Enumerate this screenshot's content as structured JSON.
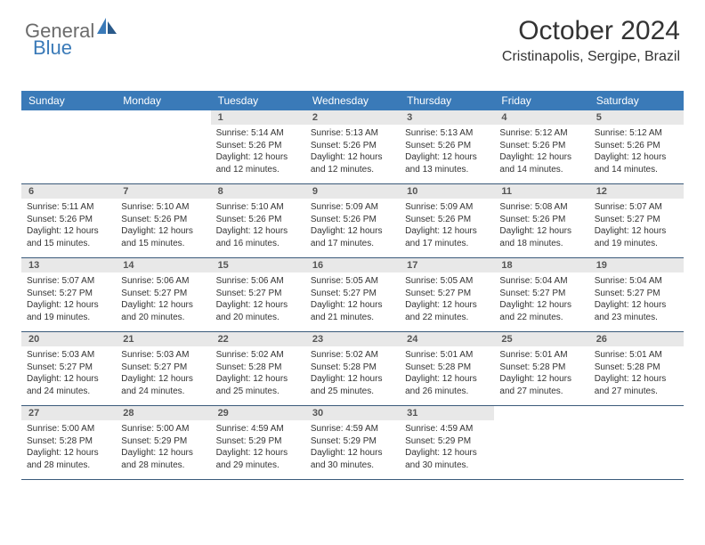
{
  "logo": {
    "word1": "General",
    "word2": "Blue"
  },
  "title": "October 2024",
  "location": "Cristinapolis, Sergipe, Brazil",
  "colors": {
    "header_bg": "#3a7ab8",
    "header_text": "#ffffff",
    "daynum_bg": "#e8e8e8",
    "daynum_text": "#555555",
    "body_text": "#333333",
    "week_border": "#3a5a7a",
    "logo_gray": "#6b6b6b",
    "logo_blue": "#3a7ab8",
    "background": "#ffffff"
  },
  "typography": {
    "title_fontsize": 30,
    "location_fontsize": 16,
    "header_fontsize": 12,
    "daynum_fontsize": 11,
    "content_fontsize": 10
  },
  "layout": {
    "columns": 7,
    "rows": 5
  },
  "day_headers": [
    "Sunday",
    "Monday",
    "Tuesday",
    "Wednesday",
    "Thursday",
    "Friday",
    "Saturday"
  ],
  "weeks": [
    [
      null,
      null,
      {
        "n": "1",
        "sunrise": "5:14 AM",
        "sunset": "5:26 PM",
        "daylight": "12 hours and 12 minutes."
      },
      {
        "n": "2",
        "sunrise": "5:13 AM",
        "sunset": "5:26 PM",
        "daylight": "12 hours and 12 minutes."
      },
      {
        "n": "3",
        "sunrise": "5:13 AM",
        "sunset": "5:26 PM",
        "daylight": "12 hours and 13 minutes."
      },
      {
        "n": "4",
        "sunrise": "5:12 AM",
        "sunset": "5:26 PM",
        "daylight": "12 hours and 14 minutes."
      },
      {
        "n": "5",
        "sunrise": "5:12 AM",
        "sunset": "5:26 PM",
        "daylight": "12 hours and 14 minutes."
      }
    ],
    [
      {
        "n": "6",
        "sunrise": "5:11 AM",
        "sunset": "5:26 PM",
        "daylight": "12 hours and 15 minutes."
      },
      {
        "n": "7",
        "sunrise": "5:10 AM",
        "sunset": "5:26 PM",
        "daylight": "12 hours and 15 minutes."
      },
      {
        "n": "8",
        "sunrise": "5:10 AM",
        "sunset": "5:26 PM",
        "daylight": "12 hours and 16 minutes."
      },
      {
        "n": "9",
        "sunrise": "5:09 AM",
        "sunset": "5:26 PM",
        "daylight": "12 hours and 17 minutes."
      },
      {
        "n": "10",
        "sunrise": "5:09 AM",
        "sunset": "5:26 PM",
        "daylight": "12 hours and 17 minutes."
      },
      {
        "n": "11",
        "sunrise": "5:08 AM",
        "sunset": "5:26 PM",
        "daylight": "12 hours and 18 minutes."
      },
      {
        "n": "12",
        "sunrise": "5:07 AM",
        "sunset": "5:27 PM",
        "daylight": "12 hours and 19 minutes."
      }
    ],
    [
      {
        "n": "13",
        "sunrise": "5:07 AM",
        "sunset": "5:27 PM",
        "daylight": "12 hours and 19 minutes."
      },
      {
        "n": "14",
        "sunrise": "5:06 AM",
        "sunset": "5:27 PM",
        "daylight": "12 hours and 20 minutes."
      },
      {
        "n": "15",
        "sunrise": "5:06 AM",
        "sunset": "5:27 PM",
        "daylight": "12 hours and 20 minutes."
      },
      {
        "n": "16",
        "sunrise": "5:05 AM",
        "sunset": "5:27 PM",
        "daylight": "12 hours and 21 minutes."
      },
      {
        "n": "17",
        "sunrise": "5:05 AM",
        "sunset": "5:27 PM",
        "daylight": "12 hours and 22 minutes."
      },
      {
        "n": "18",
        "sunrise": "5:04 AM",
        "sunset": "5:27 PM",
        "daylight": "12 hours and 22 minutes."
      },
      {
        "n": "19",
        "sunrise": "5:04 AM",
        "sunset": "5:27 PM",
        "daylight": "12 hours and 23 minutes."
      }
    ],
    [
      {
        "n": "20",
        "sunrise": "5:03 AM",
        "sunset": "5:27 PM",
        "daylight": "12 hours and 24 minutes."
      },
      {
        "n": "21",
        "sunrise": "5:03 AM",
        "sunset": "5:27 PM",
        "daylight": "12 hours and 24 minutes."
      },
      {
        "n": "22",
        "sunrise": "5:02 AM",
        "sunset": "5:28 PM",
        "daylight": "12 hours and 25 minutes."
      },
      {
        "n": "23",
        "sunrise": "5:02 AM",
        "sunset": "5:28 PM",
        "daylight": "12 hours and 25 minutes."
      },
      {
        "n": "24",
        "sunrise": "5:01 AM",
        "sunset": "5:28 PM",
        "daylight": "12 hours and 26 minutes."
      },
      {
        "n": "25",
        "sunrise": "5:01 AM",
        "sunset": "5:28 PM",
        "daylight": "12 hours and 27 minutes."
      },
      {
        "n": "26",
        "sunrise": "5:01 AM",
        "sunset": "5:28 PM",
        "daylight": "12 hours and 27 minutes."
      }
    ],
    [
      {
        "n": "27",
        "sunrise": "5:00 AM",
        "sunset": "5:28 PM",
        "daylight": "12 hours and 28 minutes."
      },
      {
        "n": "28",
        "sunrise": "5:00 AM",
        "sunset": "5:29 PM",
        "daylight": "12 hours and 28 minutes."
      },
      {
        "n": "29",
        "sunrise": "4:59 AM",
        "sunset": "5:29 PM",
        "daylight": "12 hours and 29 minutes."
      },
      {
        "n": "30",
        "sunrise": "4:59 AM",
        "sunset": "5:29 PM",
        "daylight": "12 hours and 30 minutes."
      },
      {
        "n": "31",
        "sunrise": "4:59 AM",
        "sunset": "5:29 PM",
        "daylight": "12 hours and 30 minutes."
      },
      null,
      null
    ]
  ],
  "labels": {
    "sunrise": "Sunrise:",
    "sunset": "Sunset:",
    "daylight": "Daylight:"
  }
}
